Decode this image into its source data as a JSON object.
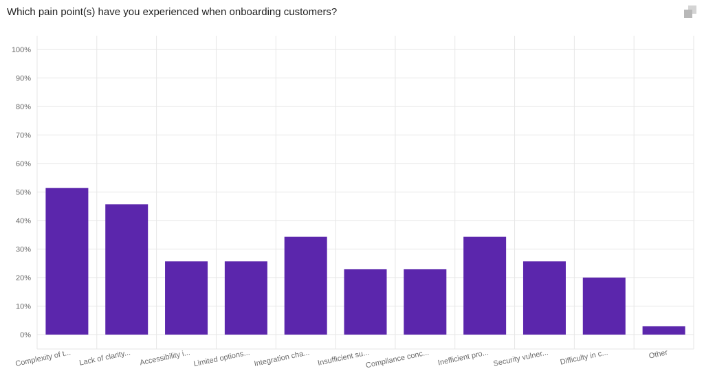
{
  "question": "Which pain point(s) have you experienced when onboarding customers?",
  "icons": {
    "copy": "copy-icon"
  },
  "colors": {
    "bar": "#5b26ac",
    "grid": "#e6e6e6",
    "axis_text": "#6a6a6a"
  },
  "chart_data": {
    "type": "bar",
    "categories": [
      "Complexity of t...",
      "Lack of clarity...",
      "Accessibility i...",
      "Limited options...",
      "Integration cha...",
      "Insufficient su...",
      "Compliance conc...",
      "Inefficient pro...",
      "Security vulner...",
      "Difficulty in c...",
      "Other"
    ],
    "values": [
      51.4,
      45.7,
      25.7,
      25.7,
      34.3,
      22.9,
      22.9,
      34.3,
      25.7,
      20.0,
      2.9
    ],
    "ylim": [
      0,
      100
    ],
    "yticks": [
      "0%",
      "10%",
      "20%",
      "30%",
      "40%",
      "50%",
      "60%",
      "70%",
      "80%",
      "90%",
      "100%"
    ],
    "grid": true,
    "legend": "none"
  }
}
